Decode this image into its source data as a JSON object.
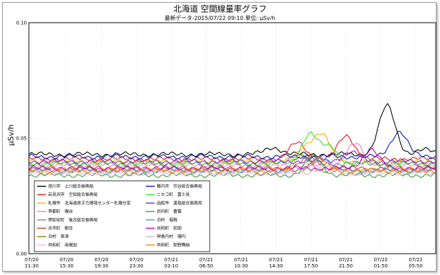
{
  "chart_data": {
    "type": "line",
    "title": "北海道 空間線量率グラフ",
    "subtitle": "最新データ-2015/07/22 09:10 単位: μSv/h",
    "ylabel": "μSv/h",
    "xlabel": "",
    "ylim": [
      0.0,
      0.1
    ],
    "yticks": [
      "0.00",
      "0.05",
      "0.10"
    ],
    "grid": true,
    "legend_position": "bottom-left",
    "x_ticks": [
      {
        "date": "07/20",
        "time": "11:30"
      },
      {
        "date": "07/20",
        "time": "15:30"
      },
      {
        "date": "07/20",
        "time": "19:30"
      },
      {
        "date": "07/20",
        "time": "23:30"
      },
      {
        "date": "07/21",
        "time": "03:10"
      },
      {
        "date": "07/21",
        "time": "06:50"
      },
      {
        "date": "07/21",
        "time": "10:30"
      },
      {
        "date": "07/21",
        "time": "14:30"
      },
      {
        "date": "07/21",
        "time": "17:50"
      },
      {
        "date": "07/21",
        "time": "21:50"
      },
      {
        "date": "07/22",
        "time": "01:50"
      },
      {
        "date": "07/22",
        "time": "05:50"
      }
    ],
    "series": [
      {
        "name": "旭川市　上川総合振興局",
        "color": "#000000",
        "base": 0.043,
        "bumps": [
          [
            0.6,
            0.003
          ],
          [
            0.88,
            0.021
          ],
          [
            0.97,
            0.002
          ]
        ]
      },
      {
        "name": "岩見沢市　空知総合振興局",
        "color": "#e8101c",
        "base": 0.041,
        "bumps": [
          [
            0.66,
            0.007
          ],
          [
            0.78,
            0.01
          ]
        ]
      },
      {
        "name": "札幌市　北海道原子力環境センター札幌分室",
        "color": "#f0b400",
        "base": 0.04,
        "bumps": [
          [
            0.68,
            0.006
          ],
          [
            0.72,
            0.011
          ]
        ]
      },
      {
        "name": "寿都町　磯谷",
        "color": "#ff7ab8",
        "base": 0.038,
        "bumps": [
          [
            0.8,
            0.01
          ]
        ]
      },
      {
        "name": "倶知安町　後志総合振興局",
        "color": "#808080",
        "base": 0.039,
        "bumps": [
          [
            0.66,
            0.004
          ]
        ]
      },
      {
        "name": "余市町　朝日",
        "color": "#c04020",
        "base": 0.037,
        "bumps": [
          [
            0.69,
            0.005
          ]
        ]
      },
      {
        "name": "泊村　茶津",
        "color": "#808000",
        "base": 0.036,
        "bumps": [
          [
            0.67,
            0.006
          ]
        ]
      },
      {
        "name": "共和町　南幌加",
        "color": "#ffb0ff",
        "base": 0.035,
        "bumps": [
          [
            0.7,
            0.004
          ]
        ]
      },
      {
        "name": "稚内市　宗谷総合振興局",
        "color": "#0010c0",
        "base": 0.042,
        "bumps": [
          [
            0.91,
            0.011
          ]
        ]
      },
      {
        "name": "ニセコ町　富士見",
        "color": "#30e030",
        "base": 0.039,
        "bumps": [
          [
            0.69,
            0.013
          ],
          [
            0.74,
            0.007
          ]
        ]
      },
      {
        "name": "函館市　渡島総合振興局",
        "color": "#8020d0",
        "base": 0.04,
        "bumps": [
          [
            0.79,
            0.004
          ]
        ]
      },
      {
        "name": "岩内町　雷電",
        "color": "#30a030",
        "base": 0.034,
        "bumps": [
          [
            0.7,
            0.008
          ]
        ]
      },
      {
        "name": "泊村　堀株",
        "color": "#5090e0",
        "base": 0.036,
        "bumps": [
          [
            0.72,
            0.006
          ]
        ]
      },
      {
        "name": "共和町　前田",
        "color": "#c000c0",
        "base": 0.037,
        "bumps": [
          [
            0.84,
            0.008
          ]
        ]
      },
      {
        "name": "神恵内村　珊内",
        "color": "#c0c0c0",
        "base": 0.035,
        "bumps": [
          [
            0.73,
            0.003
          ]
        ]
      },
      {
        "name": "共和町　梨野舞納",
        "color": "#ff8000",
        "base": 0.036,
        "bumps": [
          [
            0.71,
            0.005
          ]
        ]
      }
    ]
  }
}
